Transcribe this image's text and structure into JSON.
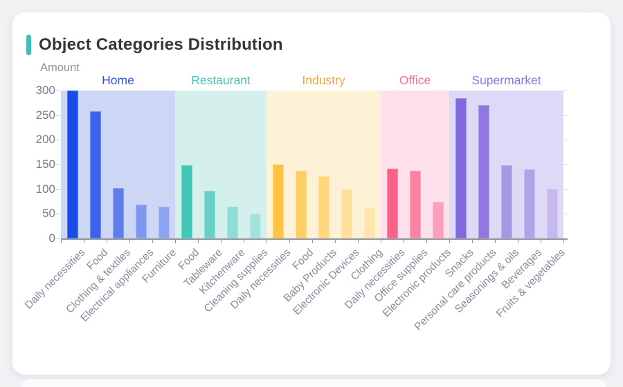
{
  "page": {
    "background": "#f0f2f4",
    "card_background": "#ffffff"
  },
  "header": {
    "title": "Object Categories Distribution",
    "accent_color": "#3fc0b4"
  },
  "axis": {
    "y_label_color": "#757a84",
    "x_label_color": "#868ca0",
    "line_color": "#8f959e"
  },
  "chart_data": {
    "type": "bar",
    "title": "Object Categories Distribution",
    "xlabel": "",
    "ylabel": "Amount",
    "ylim": [
      0,
      300
    ],
    "y_ticks": [
      0,
      50,
      100,
      150,
      200,
      250,
      300
    ],
    "grid": false,
    "legend_position": "top-inline-group-labels",
    "groups": [
      {
        "name": "Home",
        "label_color": "#2d50e9",
        "band_color": "#cdd7f5",
        "bars": [
          {
            "category": "Daily necessities",
            "value": 300,
            "color": "#1a4be8"
          },
          {
            "category": "Food",
            "value": 258,
            "color": "#3c64ea"
          },
          {
            "category": "Clothing & textiles",
            "value": 103,
            "color": "#5f7eee"
          },
          {
            "category": "Electrical appliances",
            "value": 69,
            "color": "#7e97f1"
          },
          {
            "category": "Furniture",
            "value": 64,
            "color": "#8da4f2"
          }
        ]
      },
      {
        "name": "Restaurant",
        "label_color": "#41c6b8",
        "band_color": "#d5efec",
        "bars": [
          {
            "category": "Food",
            "value": 148,
            "color": "#41c6b8"
          },
          {
            "category": "Tableware",
            "value": 97,
            "color": "#67d1c6"
          },
          {
            "category": "Kitchenware",
            "value": 65,
            "color": "#8eddd4"
          },
          {
            "category": "Cleaning supplies",
            "value": 51,
            "color": "#a4e3dc"
          }
        ]
      },
      {
        "name": "Industry",
        "label_color": "#eca63e",
        "band_color": "#fdf1d6",
        "bars": [
          {
            "category": "Daily necessities",
            "value": 150,
            "color": "#fec342"
          },
          {
            "category": "Food",
            "value": 138,
            "color": "#fecf62"
          },
          {
            "category": "Baby Products",
            "value": 126,
            "color": "#fed77c"
          },
          {
            "category": "Electronic Devices",
            "value": 100,
            "color": "#fee09b"
          },
          {
            "category": "Clothing",
            "value": 63,
            "color": "#fee5aa"
          }
        ]
      },
      {
        "name": "Office",
        "label_color": "#fa6d99",
        "band_color": "#fee0ea",
        "bars": [
          {
            "category": "Daily necessities",
            "value": 142,
            "color": "#fa6188"
          },
          {
            "category": "Office supplies",
            "value": 138,
            "color": "#fa83a3"
          },
          {
            "category": "Electronic products",
            "value": 75,
            "color": "#fb9fba"
          }
        ]
      },
      {
        "name": "Supermarket",
        "label_color": "#8b77de",
        "band_color": "#ded9f6",
        "bars": [
          {
            "category": "Snacks",
            "value": 285,
            "color": "#8168dc"
          },
          {
            "category": "Personal care products",
            "value": 271,
            "color": "#9078e0"
          },
          {
            "category": "Seasonings & oils",
            "value": 148,
            "color": "#a795e6"
          },
          {
            "category": "Beverages",
            "value": 140,
            "color": "#b2a2e9"
          },
          {
            "category": "Fruits & vegetables",
            "value": 101,
            "color": "#c5b8ef"
          }
        ]
      }
    ]
  }
}
